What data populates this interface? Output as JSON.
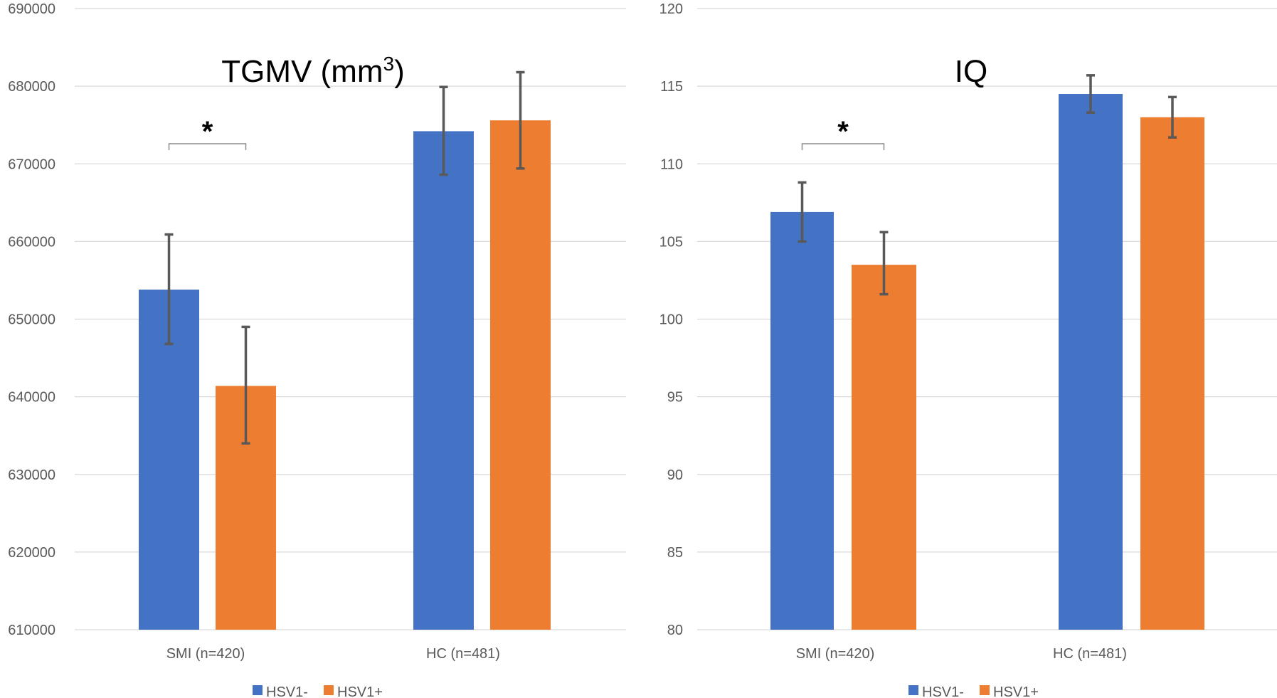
{
  "colors": {
    "hsv1_neg": "#4472C4",
    "hsv1_pos": "#ED7D31",
    "grid": "#D9D9D9",
    "error_bar": "#595959"
  },
  "chart_data": [
    {
      "type": "bar",
      "title": "TGMV (mm",
      "title_sup": "3",
      "title_close": ")",
      "categories": [
        "SMI (n=420)",
        "HC (n=481)"
      ],
      "series": [
        {
          "name": "HSV1-",
          "values": [
            653800,
            674200
          ],
          "err_low": [
            646800,
            668600
          ],
          "err_high": [
            660900,
            679900
          ]
        },
        {
          "name": "HSV1+",
          "values": [
            641400,
            675600
          ],
          "err_low": [
            634000,
            669400
          ],
          "err_high": [
            649000,
            681800
          ]
        }
      ],
      "ylim": [
        610000,
        690000
      ],
      "yticks": [
        "610000",
        "620000",
        "630000",
        "640000",
        "650000",
        "660000",
        "670000",
        "680000",
        "690000"
      ],
      "significance": {
        "category": "SMI (n=420)",
        "label": "*"
      },
      "legend": {
        "position": "bottom",
        "items": [
          "HSV1-",
          "HSV1+"
        ]
      }
    },
    {
      "type": "bar",
      "title": "IQ",
      "categories": [
        "SMI (n=420)",
        "HC (n=481)"
      ],
      "series": [
        {
          "name": "HSV1-",
          "values": [
            106.9,
            114.5
          ],
          "err_low": [
            105.0,
            113.3
          ],
          "err_high": [
            108.8,
            115.7
          ]
        },
        {
          "name": "HSV1+",
          "values": [
            103.5,
            113.0
          ],
          "err_low": [
            101.6,
            111.7
          ],
          "err_high": [
            105.6,
            114.3
          ]
        }
      ],
      "ylim": [
        80,
        120
      ],
      "yticks": [
        "80",
        "85",
        "90",
        "95",
        "100",
        "105",
        "110",
        "115",
        "120"
      ],
      "significance": {
        "category": "SMI (n=420)",
        "label": "*"
      },
      "legend": {
        "position": "bottom",
        "items": [
          "HSV1-",
          "HSV1+"
        ]
      }
    }
  ]
}
